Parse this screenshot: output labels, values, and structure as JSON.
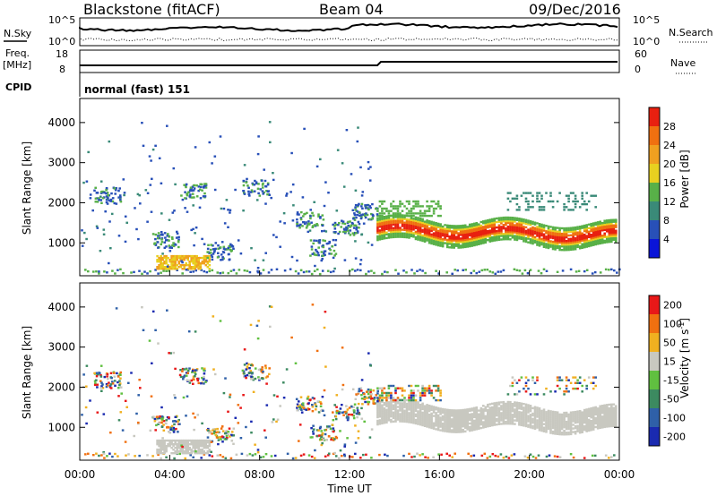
{
  "header": {
    "station": "Blackstone (fitACF)",
    "beam": "Beam 04",
    "date": "09/Dec/2016"
  },
  "status_panels": {
    "nsky_label": "N.Sky",
    "nsearch_label": "N.Search",
    "freq_label": "Freq.",
    "freq_unit": "[MHz]",
    "nave_label": "Nave",
    "cpid_label": "CPID",
    "cpid_value": "normal (fast) 151",
    "nsky_ticks": [
      "10^5",
      "10^0"
    ],
    "nsearch_ticks": [
      "10^5",
      "10^0"
    ],
    "freq_ticks": [
      "18",
      "8"
    ],
    "nave_ticks": [
      "60",
      "0"
    ]
  },
  "chart_data": [
    {
      "type": "heatmap",
      "name": "power",
      "ylabel": "Slant Range [km]",
      "y_ticks": [
        1000,
        2000,
        3000,
        4000
      ],
      "ylim": [
        180,
        4600
      ],
      "xlim": [
        0,
        24
      ],
      "colorbar": {
        "label": "Power [dB]",
        "ticks": [
          "4",
          "8",
          "12",
          "16",
          "20",
          "24",
          "28"
        ],
        "colors": [
          "#0a14d8",
          "#2850b8",
          "#3a8a78",
          "#58b048",
          "#e8d020",
          "#f0a020",
          "#f07010",
          "#e82010"
        ]
      }
    },
    {
      "type": "heatmap",
      "name": "velocity",
      "ylabel": "Slant Range [km]",
      "y_ticks": [
        1000,
        2000,
        3000,
        4000
      ],
      "ylim": [
        180,
        4600
      ],
      "xlim": [
        0,
        24
      ],
      "xlabel": "Time UT",
      "x_ticks": [
        "00:00",
        "04:00",
        "08:00",
        "12:00",
        "16:00",
        "20:00",
        "00:00"
      ],
      "colorbar": {
        "label": "Velocity [m s^-1]",
        "ticks": [
          "200",
          "100",
          "50",
          "15",
          "-15",
          "-50",
          "-100",
          "-200"
        ],
        "colors": [
          "#1a2ab0",
          "#2f60a8",
          "#3c8a60",
          "#60c040",
          "#c8c8c0",
          "#f0b020",
          "#f07010",
          "#e81818"
        ]
      }
    }
  ]
}
